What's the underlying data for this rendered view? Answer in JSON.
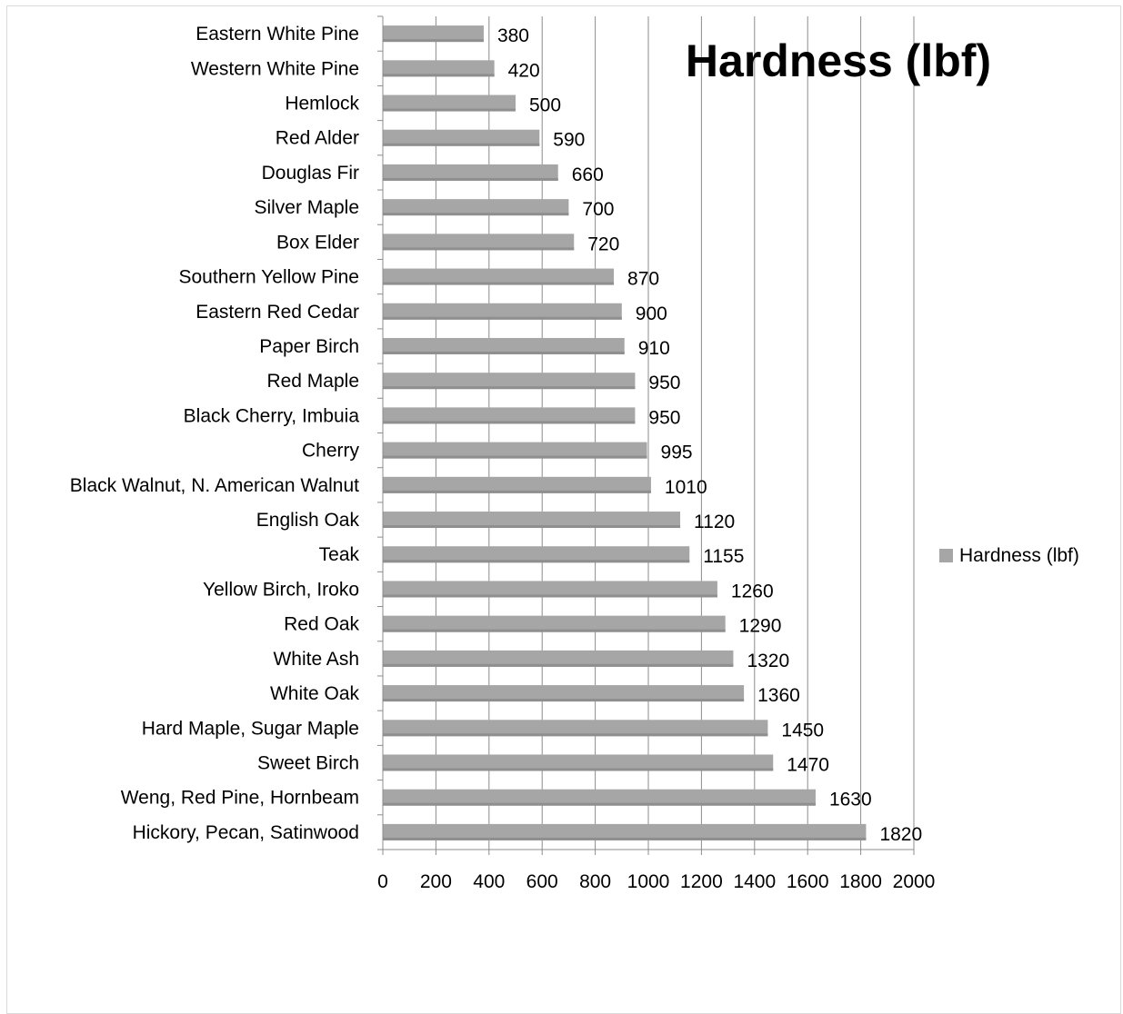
{
  "chart_data": {
    "type": "bar",
    "orientation": "horizontal",
    "title": "Hardness (lbf)",
    "xlabel": "",
    "ylabel": "",
    "xlim": [
      0,
      2000
    ],
    "xticks": [
      0,
      200,
      400,
      600,
      800,
      1000,
      1200,
      1400,
      1600,
      1800,
      2000
    ],
    "grid": "vertical",
    "legend": "right",
    "bar_color": "#a6a6a6",
    "categories": [
      "Eastern White Pine",
      "Western White Pine",
      "Hemlock",
      "Red Alder",
      "Douglas Fir",
      "Silver Maple",
      "Box Elder",
      "Southern Yellow Pine",
      "Eastern Red Cedar",
      "Paper Birch",
      "Red Maple",
      "Black Cherry, Imbuia",
      "Cherry",
      "Black Walnut, N. American Walnut",
      "English Oak",
      "Teak",
      "Yellow Birch, Iroko",
      "Red Oak",
      "White Ash",
      "White Oak",
      "Hard Maple, Sugar Maple",
      "Sweet Birch",
      "Weng, Red Pine, Hornbeam",
      "Hickory, Pecan, Satinwood"
    ],
    "series": [
      {
        "name": "Hardness (lbf)",
        "values": [
          380,
          420,
          500,
          590,
          660,
          700,
          720,
          870,
          900,
          910,
          950,
          950,
          995,
          1010,
          1120,
          1155,
          1260,
          1290,
          1320,
          1360,
          1450,
          1470,
          1630,
          1820
        ]
      }
    ]
  }
}
